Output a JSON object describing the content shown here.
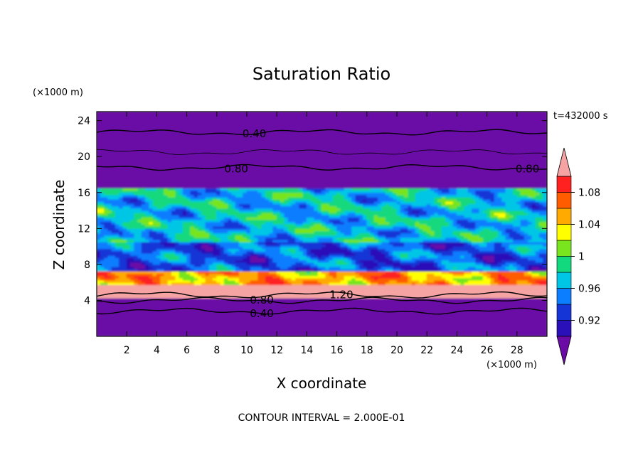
{
  "chart_data": {
    "type": "heatmap",
    "title": "Saturation Ratio",
    "xlabel": "X coordinate",
    "ylabel": "Z coordinate",
    "x_unit": "(×1000 m)",
    "y_unit": "(×1000 m)",
    "time_label": "t=432000 s",
    "footer": "CONTOUR INTERVAL = 2.000E-01",
    "xlim": [
      0,
      30
    ],
    "ylim": [
      0,
      25
    ],
    "x_ticks": [
      2,
      4,
      6,
      8,
      10,
      12,
      14,
      16,
      18,
      20,
      22,
      24,
      26,
      28
    ],
    "x_tick_labels": [
      "2",
      "4",
      "6",
      "8",
      "10",
      "12",
      "14",
      "16",
      "18",
      "20",
      "22",
      "24",
      "26",
      "28"
    ],
    "y_ticks": [
      4,
      8,
      12,
      16,
      20,
      24
    ],
    "y_tick_labels": [
      "4",
      "8",
      "12",
      "16",
      "20",
      "24"
    ],
    "colorbar": {
      "levels": [
        0.9,
        0.92,
        0.94,
        0.96,
        0.98,
        1.0,
        1.02,
        1.04,
        1.06,
        1.08,
        1.1
      ],
      "colors": [
        "#6a0ba6",
        "#2a10b8",
        "#1535d6",
        "#0b7dff",
        "#00c6e6",
        "#12d97e",
        "#78e51e",
        "#ffff00",
        "#ffaa00",
        "#ff5c00",
        "#ff2020",
        "#f5a3a3"
      ],
      "under_color": "#6a0ba6",
      "over_color": "#f5a3a3",
      "labels": [
        "0.92",
        "0.96",
        "1",
        "1.04",
        "1.08"
      ],
      "label_values": [
        0.92,
        0.96,
        1.0,
        1.04,
        1.08
      ]
    },
    "layers": [
      {
        "z": [
          0,
          4.3
        ],
        "value": 0.5
      },
      {
        "z": [
          4.3,
          5.8
        ],
        "value": 1.12
      },
      {
        "z": [
          5.8,
          7.2
        ],
        "value": 1.05
      },
      {
        "z": [
          7.2,
          10.5
        ],
        "value": 0.94
      },
      {
        "z": [
          10.5,
          16.5
        ],
        "value": 0.97
      },
      {
        "z": [
          16.5,
          25
        ],
        "value": 0.5
      }
    ],
    "contours": [
      {
        "value": 0.4,
        "label": "0.40",
        "z_mean": 22.7,
        "label_at": [
          10.5,
          22.3
        ]
      },
      {
        "value": 0.6,
        "label": "",
        "z_mean": 20.5,
        "label_at": null
      },
      {
        "value": 0.8,
        "label": "0.80",
        "z_mean": 18.8,
        "label_at": [
          9.3,
          18.4
        ]
      },
      {
        "value": 0.8,
        "label": "0.80",
        "z_mean": 18.8,
        "label_at": [
          28.7,
          18.4
        ]
      },
      {
        "value": 0.8,
        "label": "0.80",
        "z_mean": 4.0,
        "label_at": [
          11.0,
          3.8
        ]
      },
      {
        "value": 0.4,
        "label": "0.40",
        "z_mean": 2.8,
        "label_at": [
          11.0,
          2.3
        ]
      },
      {
        "value": 1.2,
        "label": "1.20",
        "z_mean": 4.6,
        "label_at": [
          16.3,
          4.4
        ]
      }
    ]
  }
}
